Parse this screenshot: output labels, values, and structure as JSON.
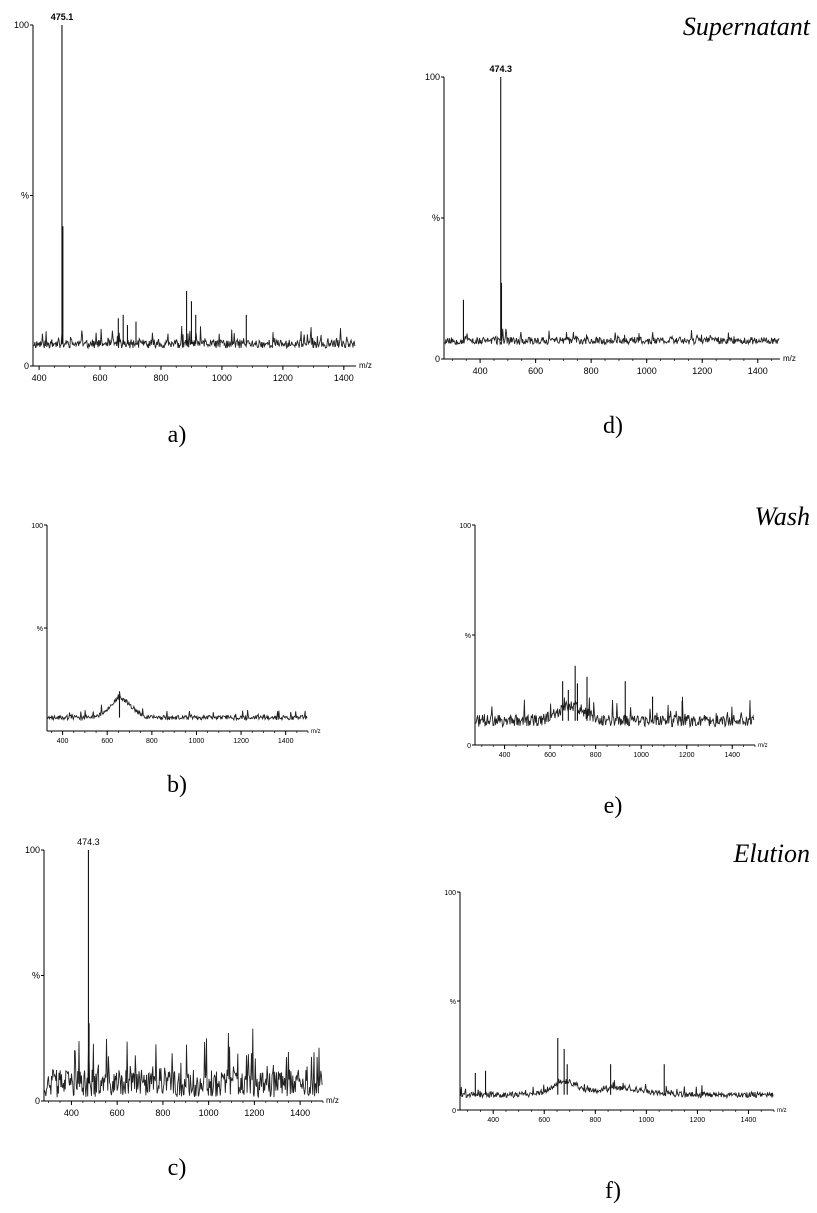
{
  "sections": [
    "Supernatant",
    "Wash",
    "Elution"
  ],
  "chart_data": [
    {
      "panel": "a)",
      "type": "line",
      "xlabel": "m/z",
      "ylabel": "%",
      "xlim": [
        380,
        1440
      ],
      "ylim": [
        0,
        100
      ],
      "x_ticks": [
        "400",
        "600",
        "800",
        "1000",
        "1200",
        "1400"
      ],
      "y_ticks": [
        "0",
        "%",
        "100"
      ],
      "baseline": 6.5,
      "noise": 1.3,
      "seed": 11,
      "peak_label": "475.1",
      "peak_label_x": 475.1,
      "peaks": [
        [
          475.1,
          100
        ],
        [
          478,
          41
        ],
        [
          660,
          14
        ],
        [
          676,
          15
        ],
        [
          690,
          12
        ],
        [
          718,
          13
        ],
        [
          884,
          22
        ],
        [
          900,
          19
        ],
        [
          914,
          15
        ],
        [
          1080,
          15
        ],
        [
          1298,
          8
        ]
      ],
      "bumps": []
    },
    {
      "panel": "b)",
      "type": "line",
      "xlabel": "m/z",
      "ylabel": "%",
      "xlim": [
        330,
        1500
      ],
      "ylim": [
        0,
        100
      ],
      "x_ticks": [
        "400",
        "600",
        "800",
        "1000",
        "1200",
        "1400"
      ],
      "y_ticks": [
        "100",
        "%"
      ],
      "baseline": 6.5,
      "noise": 1.1,
      "seed": 23,
      "peak_label": "",
      "peaks": [
        [
          655,
          17
        ]
      ],
      "bumps": [
        [
          660,
          9,
          70
        ]
      ]
    },
    {
      "panel": "c)",
      "type": "line",
      "xlabel": "m/z",
      "ylabel": "%",
      "xlim": [
        280,
        1500
      ],
      "ylim": [
        0,
        100
      ],
      "x_ticks": [
        "400",
        "600",
        "800",
        "1000",
        "1200",
        "1400"
      ],
      "y_ticks": [
        "0",
        "%",
        "100"
      ],
      "baseline": 7,
      "noise": 5.5,
      "seed": 37,
      "peak_label": "474.3",
      "peak_label_x": 474.3,
      "peaks": [
        [
          474.3,
          100
        ],
        [
          477,
          31
        ]
      ],
      "bumps": []
    },
    {
      "panel": "d)",
      "type": "line",
      "xlabel": "m/z",
      "ylabel": "%",
      "xlim": [
        270,
        1480
      ],
      "ylim": [
        0,
        100
      ],
      "x_ticks": [
        "400",
        "600",
        "800",
        "1000",
        "1200",
        "1400"
      ],
      "y_ticks": [
        "0",
        "%",
        "100"
      ],
      "baseline": 6.5,
      "noise": 1.3,
      "seed": 53,
      "peak_label": "474.3",
      "peak_label_x": 474.3,
      "peaks": [
        [
          474.3,
          100
        ],
        [
          477,
          27
        ],
        [
          340,
          21
        ]
      ],
      "bumps": []
    },
    {
      "panel": "e)",
      "type": "line",
      "xlabel": "m/z",
      "ylabel": "%",
      "xlim": [
        270,
        1500
      ],
      "ylim": [
        0,
        100
      ],
      "x_ticks": [
        "400",
        "600",
        "800",
        "1000",
        "1200",
        "1400"
      ],
      "y_ticks": [
        "0",
        "%",
        "100"
      ],
      "baseline": 11,
      "noise": 2.7,
      "seed": 71,
      "peak_label": "",
      "peaks": [
        [
          655,
          29
        ],
        [
          680,
          25
        ],
        [
          710,
          36
        ],
        [
          720,
          28
        ],
        [
          762,
          31
        ],
        [
          930,
          29
        ],
        [
          1050,
          22
        ],
        [
          1180,
          20
        ]
      ],
      "bumps": [
        [
          690,
          7,
          80
        ]
      ]
    },
    {
      "panel": "f)",
      "type": "line",
      "xlabel": "m/z",
      "ylabel": "%",
      "xlim": [
        270,
        1500
      ],
      "ylim": [
        0,
        100
      ],
      "x_ticks": [
        "400",
        "600",
        "800",
        "1000",
        "1200",
        "1400"
      ],
      "y_ticks": [
        "100",
        "%",
        "0"
      ],
      "baseline": 7,
      "noise": 1.3,
      "seed": 89,
      "peak_label": "",
      "peaks": [
        [
          653,
          33
        ],
        [
          678,
          28
        ],
        [
          690,
          21
        ],
        [
          860,
          21
        ],
        [
          1070,
          21
        ],
        [
          330,
          17
        ],
        [
          370,
          18
        ]
      ],
      "bumps": [
        [
          680,
          6,
          70
        ],
        [
          900,
          3,
          120
        ]
      ]
    }
  ]
}
